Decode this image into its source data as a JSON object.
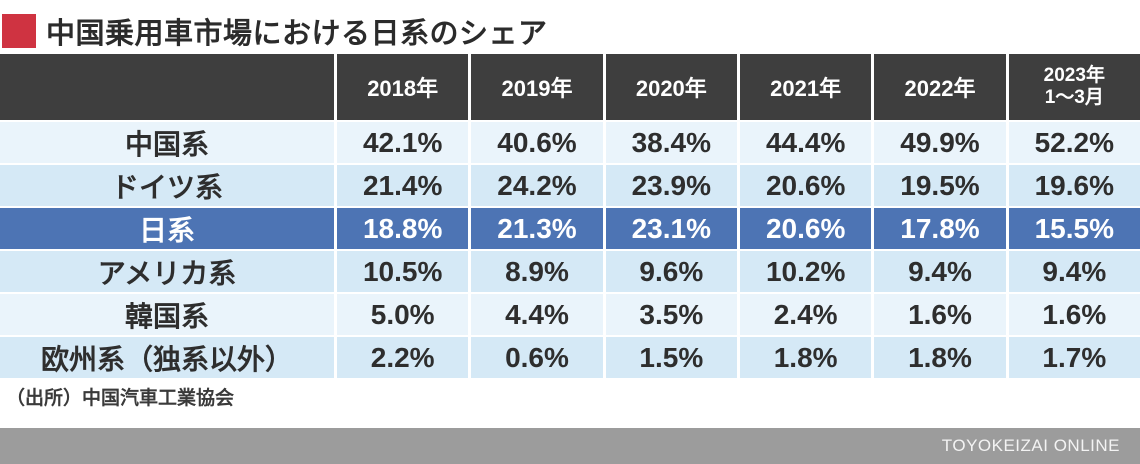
{
  "title": {
    "text": "中国乗用車市場における日系のシェア"
  },
  "colors": {
    "title_bullet": "#cf3341",
    "header_bg": "#3e3e3e",
    "row_light": "#eaf4fb",
    "row_medium": "#d5e9f6",
    "highlight_row_bg": "#4d74b4",
    "brand_bar_bg": "#9c9c9c"
  },
  "chart_data": {
    "type": "table",
    "title": "中国乗用車市場における日系のシェア",
    "unit": "%",
    "columns": [
      "2018年",
      "2019年",
      "2020年",
      "2021年",
      "2022年",
      "2023年\n1〜3月"
    ],
    "rows": [
      {
        "label": "中国系",
        "values": [
          "42.1%",
          "40.6%",
          "38.4%",
          "44.4%",
          "49.9%",
          "52.2%"
        ],
        "highlighted": false
      },
      {
        "label": "ドイツ系",
        "values": [
          "21.4%",
          "24.2%",
          "23.9%",
          "20.6%",
          "19.5%",
          "19.6%"
        ],
        "highlighted": false
      },
      {
        "label": "日系",
        "values": [
          "18.8%",
          "21.3%",
          "23.1%",
          "20.6%",
          "17.8%",
          "15.5%"
        ],
        "highlighted": true
      },
      {
        "label": "アメリカ系",
        "values": [
          "10.5%",
          "8.9%",
          "9.6%",
          "10.2%",
          "9.4%",
          "9.4%"
        ],
        "highlighted": false
      },
      {
        "label": "韓国系",
        "values": [
          "5.0%",
          "4.4%",
          "3.5%",
          "2.4%",
          "1.6%",
          "1.6%"
        ],
        "highlighted": false
      },
      {
        "label": "欧州系（独系以外）",
        "values": [
          "2.2%",
          "0.6%",
          "1.5%",
          "1.8%",
          "1.8%",
          "1.7%"
        ],
        "highlighted": false
      }
    ],
    "highlight_row": "日系"
  },
  "source": {
    "text": "（出所）中国汽車工業協会"
  },
  "brand": {
    "text": "TOYOKEIZAI ONLINE"
  }
}
